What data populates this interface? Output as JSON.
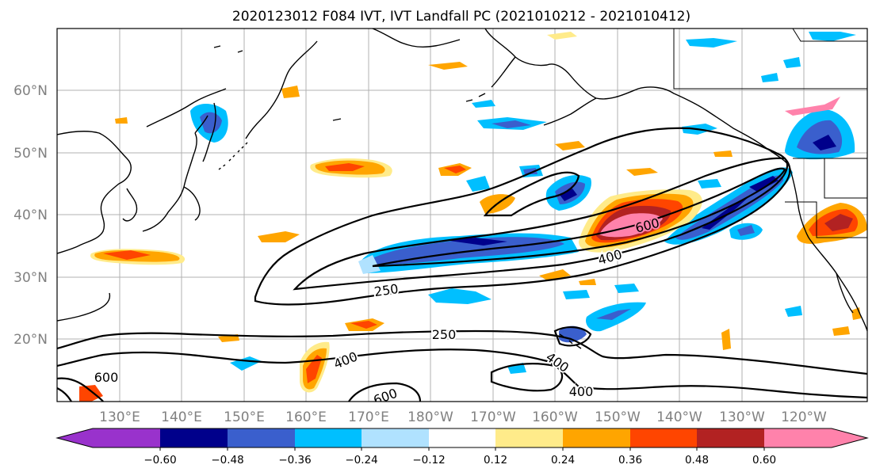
{
  "title": "2020123012 F084 IVT, IVT Landfall PC (2021010212 - 2021010412)",
  "lon_labels": [
    "130°E",
    "140°E",
    "150°E",
    "160°E",
    "170°E",
    "180°W",
    "170°W",
    "160°W",
    "150°W",
    "140°W",
    "130°W",
    "120°W"
  ],
  "lat_labels": [
    "60°N",
    "50°N",
    "40°N",
    "30°N",
    "20°N"
  ],
  "colorbar": {
    "ticks": [
      "−0.60",
      "−0.48",
      "−0.36",
      "−0.24",
      "−0.12",
      "0.12",
      "0.24",
      "0.36",
      "0.48",
      "0.60"
    ],
    "colors": [
      "#9932cc",
      "#00008b",
      "#3a5fcd",
      "#00bfff",
      "#b0e2ff",
      "#ffffff",
      "#ffeb8a",
      "#ffa500",
      "#ff4500",
      "#b22222",
      "#ff82ab"
    ]
  },
  "contour_labels": [
    "600",
    "400",
    "250",
    "250",
    "400",
    "400",
    "600",
    "400",
    "600"
  ]
}
